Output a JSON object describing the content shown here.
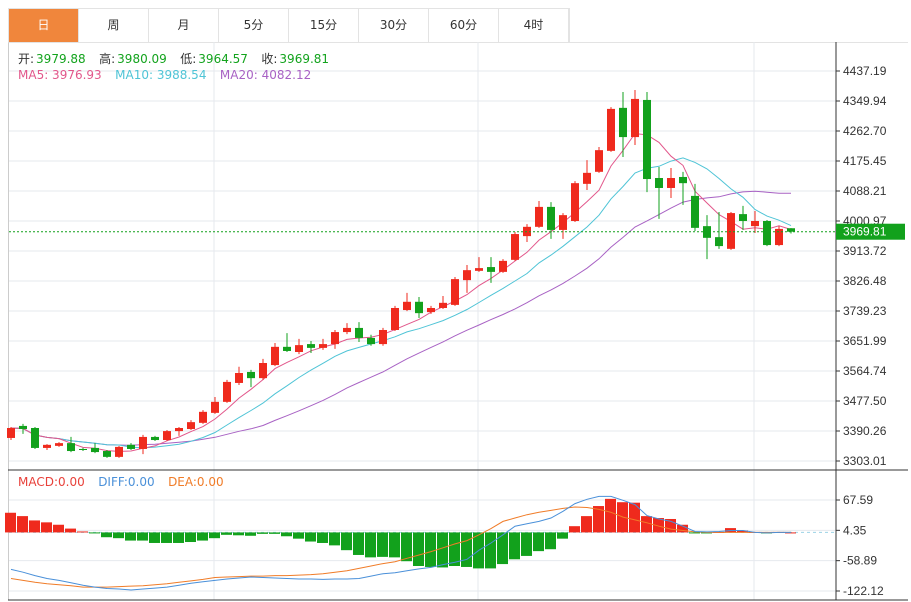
{
  "tabs": [
    {
      "label": "日",
      "active": true
    },
    {
      "label": "周"
    },
    {
      "label": "月"
    },
    {
      "label": "5分"
    },
    {
      "label": "15分"
    },
    {
      "label": "30分"
    },
    {
      "label": "60分"
    },
    {
      "label": "4时"
    }
  ],
  "ohlc_info": {
    "open_label": "开:",
    "open": "3979.88",
    "high_label": "高:",
    "high": "3980.09",
    "low_label": "低:",
    "low": "3964.57",
    "close_label": "收:",
    "close": "3969.81"
  },
  "ma_info": {
    "ma5": "MA5: 3976.93",
    "ma10": "MA10: 3988.54",
    "ma20": "MA20: 4082.12"
  },
  "macd_info": {
    "macd": "MACD:0.00",
    "diff": "DIFF:0.00",
    "dea": "DEA:0.00"
  },
  "colors": {
    "up": "#ef2a1d",
    "down": "#12a11c",
    "active_tab": "#f0863c",
    "ma5": "#e2578b",
    "ma10": "#4fc4d6",
    "ma20": "#a862c4",
    "diff": "#4a90d9",
    "dea": "#f07c28"
  },
  "chart_data": [
    {
      "type": "candlestick",
      "ylim": [
        3303.01,
        4437.19
      ],
      "grid": true,
      "y_ticks": [
        "4437.19",
        "4349.94",
        "4262.70",
        "4175.45",
        "4088.21",
        "4000.97",
        "3913.72",
        "3826.48",
        "3739.23",
        "3651.99",
        "3564.74",
        "3477.50",
        "3390.26",
        "3303.01"
      ],
      "last_price": "3969.81",
      "candles": [
        [
          3370,
          3399,
          3402,
          3364
        ],
        [
          3405,
          3396,
          3411,
          3382
        ],
        [
          3399,
          3341,
          3402,
          3338
        ],
        [
          3341,
          3350,
          3352,
          3335
        ],
        [
          3347,
          3355,
          3358,
          3344
        ],
        [
          3355,
          3332,
          3373,
          3329
        ],
        [
          3338,
          3335,
          3341,
          3332
        ],
        [
          3341,
          3329,
          3355,
          3326
        ],
        [
          3332,
          3315,
          3335,
          3312
        ],
        [
          3315,
          3344,
          3347,
          3312
        ],
        [
          3350,
          3338,
          3355,
          3335
        ],
        [
          3338,
          3373,
          3379,
          3323
        ],
        [
          3373,
          3364,
          3376,
          3361
        ],
        [
          3364,
          3390,
          3393,
          3361
        ],
        [
          3390,
          3399,
          3402,
          3376
        ],
        [
          3396,
          3416,
          3422,
          3393
        ],
        [
          3414,
          3446,
          3451,
          3411
        ],
        [
          3443,
          3475,
          3489,
          3440
        ],
        [
          3475,
          3533,
          3539,
          3472
        ],
        [
          3530,
          3559,
          3577,
          3524
        ],
        [
          3562,
          3544,
          3568,
          3518
        ],
        [
          3544,
          3588,
          3600,
          3539
        ],
        [
          3582,
          3635,
          3646,
          3579
        ],
        [
          3635,
          3623,
          3675,
          3620
        ],
        [
          3620,
          3640,
          3658,
          3614
        ],
        [
          3643,
          3632,
          3652,
          3617
        ],
        [
          3632,
          3643,
          3658,
          3626
        ],
        [
          3643,
          3678,
          3684,
          3629
        ],
        [
          3678,
          3690,
          3704,
          3672
        ],
        [
          3690,
          3661,
          3707,
          3649
        ],
        [
          3661,
          3643,
          3670,
          3638
        ],
        [
          3643,
          3684,
          3690,
          3638
        ],
        [
          3684,
          3748,
          3754,
          3681
        ],
        [
          3742,
          3766,
          3792,
          3739
        ],
        [
          3766,
          3733,
          3780,
          3719
        ],
        [
          3736,
          3748,
          3754,
          3731
        ],
        [
          3748,
          3763,
          3783,
          3745
        ],
        [
          3757,
          3832,
          3838,
          3754
        ],
        [
          3829,
          3858,
          3873,
          3792
        ],
        [
          3856,
          3864,
          3896,
          3853
        ],
        [
          3867,
          3853,
          3896,
          3821
        ],
        [
          3853,
          3885,
          3890,
          3850
        ],
        [
          3888,
          3963,
          3969,
          3885
        ],
        [
          3957,
          3984,
          3992,
          3940
        ],
        [
          3984,
          4042,
          4059,
          3981
        ],
        [
          4042,
          3975,
          4056,
          3949
        ],
        [
          3975,
          4018,
          4024,
          3949
        ],
        [
          4001,
          4111,
          4117,
          3998
        ],
        [
          4109,
          4141,
          4178,
          4091
        ],
        [
          4144,
          4207,
          4216,
          4141
        ],
        [
          4205,
          4327,
          4332,
          4202
        ],
        [
          4330,
          4245,
          4376,
          4187
        ],
        [
          4245,
          4356,
          4382,
          4222
        ],
        [
          4353,
          4123,
          4376,
          4085
        ],
        [
          4126,
          4097,
          4158,
          4007
        ],
        [
          4097,
          4126,
          4155,
          4068
        ],
        [
          4129,
          4111,
          4144,
          4048
        ],
        [
          4074,
          3981,
          4109,
          3972
        ],
        [
          3986,
          3952,
          4018,
          3890
        ],
        [
          3954,
          3928,
          4027,
          3920
        ],
        [
          3920,
          4024,
          4027,
          3917
        ],
        [
          4021,
          4001,
          4045,
          3975
        ],
        [
          3986,
          4001,
          4030,
          3966
        ],
        [
          4001,
          3931,
          4004,
          3928
        ],
        [
          3931,
          3978,
          3986,
          3928
        ],
        [
          3979.88,
          3969.81,
          3980.09,
          3964.57
        ]
      ]
    },
    {
      "type": "macd",
      "ylim": [
        -122.12,
        67.59
      ],
      "y_ticks": [
        "67.59",
        "4.35",
        "-58.89",
        "-122.12"
      ],
      "histogram": [
        41,
        34,
        25,
        21,
        16,
        8,
        2,
        -1,
        -10,
        -12,
        -17,
        -17,
        -22,
        -22,
        -22,
        -20,
        -17,
        -12,
        -5,
        -6,
        -7,
        -3,
        -3,
        -8,
        -13,
        -19,
        -22,
        -27,
        -37,
        -47,
        -52,
        -51,
        -52,
        -60,
        -70,
        -72,
        -73,
        -70,
        -72,
        -75,
        -75,
        -66,
        -56,
        -49,
        -39,
        -35,
        -13,
        13,
        34,
        55,
        70,
        63,
        62,
        34,
        30,
        28,
        16,
        -1,
        -1,
        1,
        9,
        4,
        1,
        -2,
        1,
        0
      ],
      "diff": [
        -77,
        -83,
        -90,
        -96,
        -100,
        -105,
        -110,
        -114,
        -117,
        -118,
        -120,
        -118,
        -116,
        -114,
        -110,
        -106,
        -103,
        -100,
        -97,
        -95,
        -93,
        -94,
        -95,
        -96,
        -97,
        -97,
        -98,
        -97,
        -97,
        -96,
        -91,
        -86,
        -84,
        -80,
        -76,
        -73,
        -67,
        -62,
        -56,
        -37,
        -22,
        -5,
        13,
        18,
        23,
        30,
        44,
        60,
        69,
        75,
        75,
        67,
        58,
        35,
        28,
        23,
        13,
        2,
        1,
        2,
        4,
        4,
        0,
        -1,
        0,
        0
      ],
      "dea": [
        -96,
        -100,
        -104,
        -107,
        -109,
        -111,
        -114,
        -114,
        -114,
        -113,
        -112,
        -111,
        -109,
        -107,
        -104,
        -101,
        -98,
        -94,
        -93,
        -92,
        -91,
        -91,
        -90,
        -90,
        -89,
        -88,
        -86,
        -83,
        -80,
        -75,
        -70,
        -65,
        -61,
        -54,
        -47,
        -40,
        -32,
        -24,
        -17,
        -5,
        8,
        23,
        30,
        37,
        42,
        46,
        50,
        53,
        52,
        48,
        42,
        32,
        26,
        20,
        13,
        7,
        4,
        1,
        0,
        0,
        0,
        0,
        0,
        0,
        0,
        0
      ]
    }
  ]
}
